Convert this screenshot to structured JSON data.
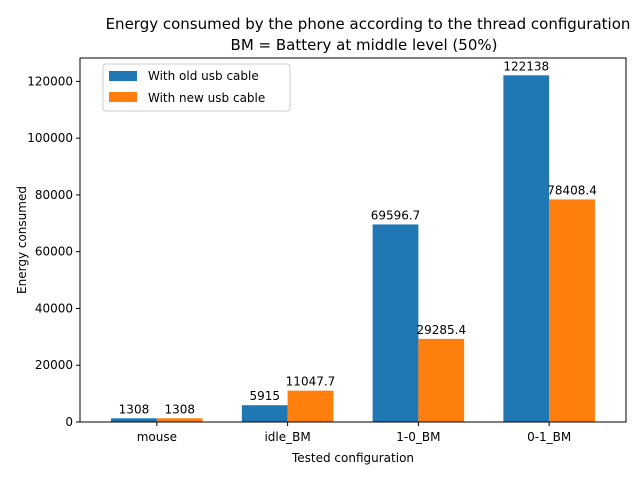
{
  "chart_data": {
    "type": "bar",
    "title": "Energy consumed by the phone according to the thread configuration",
    "subtitle": "BM = Battery at middle level (50%)",
    "xlabel": "Tested configuration",
    "ylabel": "Energy consumed",
    "categories": [
      "mouse",
      "idle_BM",
      "1-0_BM",
      "0-1_BM"
    ],
    "series": [
      {
        "name": "With old usb cable",
        "color": "#1f77b4",
        "values": [
          1308,
          5915,
          69596.7,
          122138
        ],
        "labels": [
          "1308",
          "5915",
          "69596.7",
          "122138"
        ]
      },
      {
        "name": "With new usb cable",
        "color": "#ff7f0e",
        "values": [
          1308,
          11047.7,
          29285.4,
          78408.4
        ],
        "labels": [
          "1308",
          "11047.7",
          "29285.4",
          "78408.4"
        ]
      }
    ],
    "ylim": [
      0,
      128245
    ],
    "yticks": [
      0,
      20000,
      40000,
      60000,
      80000,
      100000,
      120000
    ],
    "ytick_labels": [
      "0",
      "20000",
      "40000",
      "60000",
      "80000",
      "100000",
      "120000"
    ],
    "grid": false,
    "legend_position": "top-left"
  }
}
